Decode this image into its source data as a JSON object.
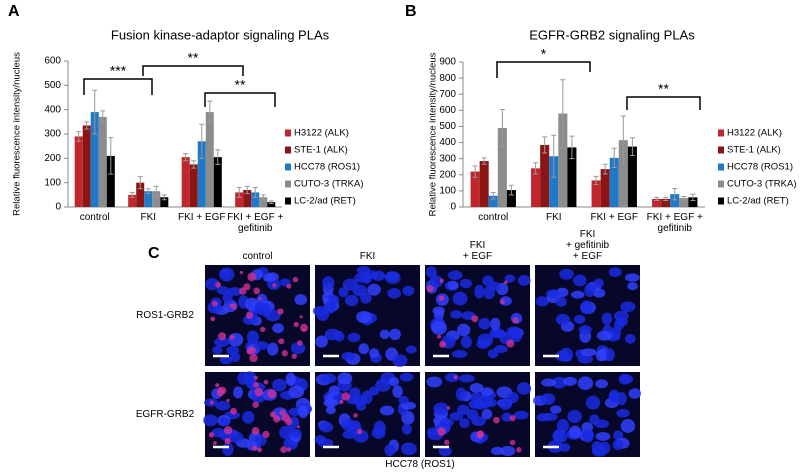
{
  "panel_labels": [
    "A",
    "B",
    "C"
  ],
  "chart_data": [
    {
      "type": "bar",
      "title": "Fusion kinase-adaptor signaling PLAs",
      "y_label": "Relative fluorescence intensity/nucleus",
      "categories": [
        "control",
        "FKI",
        "FKI + EGF",
        "FKI + EGF + gefitinib"
      ],
      "series": [
        {
          "name": "H3122 (ALK)",
          "color": "#c0272d",
          "values": [
            290,
            50,
            205,
            60
          ],
          "errors": [
            20,
            10,
            15,
            20
          ]
        },
        {
          "name": "STE-1 (ALK)",
          "color": "#8b1515",
          "values": [
            335,
            100,
            175,
            70
          ],
          "errors": [
            15,
            25,
            15,
            15
          ]
        },
        {
          "name": "HCC78 (ROS1)",
          "color": "#1f78c8",
          "values": [
            390,
            65,
            270,
            60
          ],
          "errors": [
            90,
            10,
            70,
            20
          ]
        },
        {
          "name": "CUTO-3 (TRKA)",
          "color": "#8c8c8c",
          "values": [
            370,
            65,
            390,
            40
          ],
          "errors": [
            25,
            20,
            45,
            10
          ]
        },
        {
          "name": "LC-2/ad (RET)",
          "color": "#000000",
          "values": [
            210,
            40,
            205,
            20
          ],
          "errors": [
            75,
            10,
            30,
            5
          ]
        }
      ],
      "annotations": [
        "***",
        "**",
        "**"
      ],
      "ylim": [
        0,
        600
      ],
      "yticks": [
        0,
        100,
        200,
        300,
        400,
        500,
        600
      ],
      "legend": "right"
    },
    {
      "type": "bar",
      "title": "EGFR-GRB2 signaling PLAs",
      "y_label": "Relative fluorescence intensity/nucleus",
      "categories": [
        "control",
        "FKI",
        "FKI + EGF",
        "FKI + EGF + gefitinib"
      ],
      "series": [
        {
          "name": "H3122 (ALK)",
          "color": "#c0272d",
          "values": [
            220,
            240,
            165,
            50
          ],
          "errors": [
            35,
            35,
            25,
            10
          ]
        },
        {
          "name": "STE-1 (ALK)",
          "color": "#8b1515",
          "values": [
            285,
            385,
            235,
            50
          ],
          "errors": [
            20,
            50,
            30,
            10
          ]
        },
        {
          "name": "HCC78 (ROS1)",
          "color": "#1f78c8",
          "values": [
            70,
            315,
            305,
            80
          ],
          "errors": [
            20,
            130,
            60,
            35
          ]
        },
        {
          "name": "CUTO-3 (TRKA)",
          "color": "#8c8c8c",
          "values": [
            490,
            580,
            415,
            55
          ],
          "errors": [
            115,
            210,
            150,
            10
          ]
        },
        {
          "name": "LC-2/ad (RET)",
          "color": "#000000",
          "values": [
            105,
            370,
            375,
            60
          ],
          "errors": [
            30,
            70,
            55,
            20
          ]
        }
      ],
      "annotations": [
        "*",
        "**"
      ],
      "ylim": [
        0,
        900
      ],
      "yticks": [
        0,
        100,
        200,
        300,
        400,
        500,
        600,
        700,
        800,
        900
      ],
      "legend": "right"
    }
  ],
  "panel_c": {
    "columns": [
      "control",
      "FKI",
      "FKI\n+ EGF",
      "FKI\n+ gefitinib\n+ EGF"
    ],
    "rows": [
      "ROS1-GRB2",
      "EGFR-GRB2"
    ],
    "caption": "HCC78 (ROS1)"
  }
}
